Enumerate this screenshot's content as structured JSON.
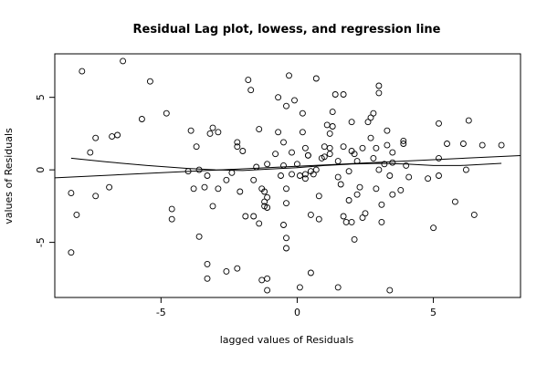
{
  "chart_data": {
    "type": "scatter",
    "title": "Residual Lag plot, lowess, and regression line",
    "xlabel": "lagged values of Residuals",
    "ylabel": "values of Residuals",
    "xlim": [
      -8.9,
      8.2
    ],
    "ylim": [
      -8.8,
      8.0
    ],
    "xticks": [
      -5,
      0,
      5
    ],
    "yticks": [
      -5,
      0,
      5
    ],
    "grid": false,
    "points": [
      [
        -8.3,
        -1.6
      ],
      [
        -8.3,
        -5.7
      ],
      [
        -8.1,
        -3.1
      ],
      [
        -7.9,
        6.8
      ],
      [
        -7.6,
        1.2
      ],
      [
        -7.4,
        2.2
      ],
      [
        -7.4,
        -1.8
      ],
      [
        -6.9,
        -1.2
      ],
      [
        -6.8,
        2.3
      ],
      [
        -6.6,
        2.4
      ],
      [
        -6.4,
        7.5
      ],
      [
        -5.4,
        6.1
      ],
      [
        -5.7,
        3.5
      ],
      [
        -4.8,
        3.9
      ],
      [
        -4.6,
        -2.7
      ],
      [
        -4.6,
        -3.4
      ],
      [
        -4.0,
        -0.1
      ],
      [
        -3.9,
        2.7
      ],
      [
        -3.8,
        -1.3
      ],
      [
        -3.7,
        1.6
      ],
      [
        -3.6,
        0.0
      ],
      [
        -3.4,
        -1.2
      ],
      [
        -3.3,
        -0.4
      ],
      [
        -3.1,
        -2.5
      ],
      [
        -3.2,
        2.5
      ],
      [
        -3.1,
        2.9
      ],
      [
        -2.9,
        2.6
      ],
      [
        -2.9,
        -1.3
      ],
      [
        -3.3,
        -6.5
      ],
      [
        -3.3,
        -7.5
      ],
      [
        -3.6,
        -4.6
      ],
      [
        -2.6,
        -0.7
      ],
      [
        -2.6,
        -7.0
      ],
      [
        -2.4,
        -0.2
      ],
      [
        -2.2,
        1.9
      ],
      [
        -2.2,
        1.6
      ],
      [
        -2.2,
        -6.8
      ],
      [
        -2.0,
        1.3
      ],
      [
        -2.1,
        -1.5
      ],
      [
        -1.9,
        -3.2
      ],
      [
        -1.8,
        6.2
      ],
      [
        -1.7,
        5.5
      ],
      [
        -1.6,
        -0.7
      ],
      [
        -1.5,
        0.2
      ],
      [
        -1.4,
        2.8
      ],
      [
        -1.6,
        -3.2
      ],
      [
        -1.4,
        -3.7
      ],
      [
        -1.3,
        -1.3
      ],
      [
        -1.2,
        -1.5
      ],
      [
        -1.2,
        -2.2
      ],
      [
        -1.1,
        -1.9
      ],
      [
        -1.1,
        -2.6
      ],
      [
        -1.2,
        -2.5
      ],
      [
        -1.1,
        0.4
      ],
      [
        -1.3,
        -7.6
      ],
      [
        -1.1,
        -7.5
      ],
      [
        -1.1,
        -8.3
      ],
      [
        -0.8,
        1.1
      ],
      [
        -0.7,
        5.0
      ],
      [
        -0.7,
        2.6
      ],
      [
        -0.6,
        -0.4
      ],
      [
        -0.5,
        0.3
      ],
      [
        -0.5,
        1.9
      ],
      [
        -0.4,
        4.4
      ],
      [
        -0.4,
        -2.3
      ],
      [
        -0.4,
        -1.3
      ],
      [
        -0.5,
        -3.8
      ],
      [
        -0.4,
        -4.7
      ],
      [
        -0.4,
        -5.4
      ],
      [
        -0.3,
        6.5
      ],
      [
        -0.2,
        1.2
      ],
      [
        -0.2,
        -0.3
      ],
      [
        -0.1,
        4.8
      ],
      [
        0.0,
        0.4
      ],
      [
        0.1,
        -0.4
      ],
      [
        0.2,
        3.9
      ],
      [
        0.2,
        2.6
      ],
      [
        0.3,
        1.5
      ],
      [
        0.3,
        -0.3
      ],
      [
        0.3,
        -0.6
      ],
      [
        0.4,
        1.0
      ],
      [
        0.4,
        1.0
      ],
      [
        0.5,
        -0.1
      ],
      [
        0.5,
        -3.1
      ],
      [
        0.6,
        -0.3
      ],
      [
        0.5,
        -7.1
      ],
      [
        0.7,
        6.3
      ],
      [
        0.7,
        0.0
      ],
      [
        0.8,
        -1.8
      ],
      [
        0.8,
        -3.4
      ],
      [
        0.9,
        0.8
      ],
      [
        1.0,
        0.9
      ],
      [
        1.0,
        1.6
      ],
      [
        1.1,
        3.1
      ],
      [
        1.2,
        1.5
      ],
      [
        1.2,
        2.5
      ],
      [
        1.2,
        1.1
      ],
      [
        1.3,
        3.0
      ],
      [
        1.3,
        4.0
      ],
      [
        1.4,
        5.2
      ],
      [
        1.5,
        -0.5
      ],
      [
        1.5,
        0.6
      ],
      [
        1.6,
        -1.0
      ],
      [
        1.7,
        5.2
      ],
      [
        1.7,
        1.6
      ],
      [
        1.7,
        -3.2
      ],
      [
        1.8,
        -3.6
      ],
      [
        1.9,
        -0.1
      ],
      [
        1.9,
        -2.1
      ],
      [
        2.0,
        1.3
      ],
      [
        2.0,
        3.3
      ],
      [
        2.0,
        -3.6
      ],
      [
        2.1,
        1.1
      ],
      [
        2.1,
        -4.8
      ],
      [
        2.2,
        0.6
      ],
      [
        2.2,
        -1.7
      ],
      [
        2.3,
        -1.2
      ],
      [
        2.4,
        1.5
      ],
      [
        2.4,
        -3.3
      ],
      [
        2.5,
        -3.0
      ],
      [
        2.6,
        3.3
      ],
      [
        2.7,
        3.6
      ],
      [
        2.7,
        2.2
      ],
      [
        2.8,
        3.9
      ],
      [
        2.8,
        0.8
      ],
      [
        2.9,
        1.5
      ],
      [
        2.9,
        -1.3
      ],
      [
        3.0,
        5.8
      ],
      [
        3.0,
        5.3
      ],
      [
        3.0,
        0.0
      ],
      [
        3.1,
        -2.4
      ],
      [
        3.1,
        -3.6
      ],
      [
        3.2,
        0.4
      ],
      [
        3.3,
        2.7
      ],
      [
        3.3,
        1.7
      ],
      [
        3.4,
        -0.4
      ],
      [
        3.5,
        1.2
      ],
      [
        3.5,
        -1.7
      ],
      [
        3.5,
        0.5
      ],
      [
        3.8,
        -1.4
      ],
      [
        3.9,
        1.8
      ],
      [
        3.9,
        2.0
      ],
      [
        4.0,
        0.3
      ],
      [
        4.1,
        -0.5
      ],
      [
        4.8,
        -0.6
      ],
      [
        5.0,
        -4.0
      ],
      [
        5.2,
        3.2
      ],
      [
        5.2,
        0.8
      ],
      [
        5.2,
        -0.4
      ],
      [
        5.5,
        1.8
      ],
      [
        5.8,
        -2.2
      ],
      [
        6.1,
        1.8
      ],
      [
        6.2,
        0.0
      ],
      [
        6.3,
        3.4
      ],
      [
        6.5,
        -3.1
      ],
      [
        6.8,
        1.7
      ],
      [
        7.5,
        1.7
      ],
      [
        1.5,
        -8.1
      ],
      [
        3.4,
        -8.3
      ],
      [
        0.1,
        -8.1
      ]
    ],
    "lowess": [
      [
        -8.3,
        0.8
      ],
      [
        -7.0,
        0.55
      ],
      [
        -5.5,
        0.3
      ],
      [
        -4.0,
        0.1
      ],
      [
        -3.0,
        0.0
      ],
      [
        -2.0,
        -0.05
      ],
      [
        -1.0,
        0.05
      ],
      [
        0.0,
        0.15
      ],
      [
        1.0,
        0.3
      ],
      [
        2.0,
        0.4
      ],
      [
        3.0,
        0.45
      ],
      [
        4.0,
        0.4
      ],
      [
        5.0,
        0.3
      ],
      [
        6.0,
        0.3
      ],
      [
        7.5,
        0.45
      ]
    ],
    "regression": {
      "intercept": 0.25,
      "slope": 0.09
    }
  }
}
